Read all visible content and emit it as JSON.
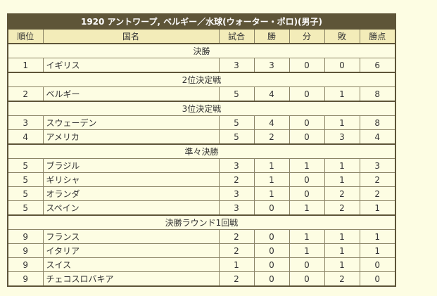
{
  "title": "1920 アントワープ, ベルギー／水球(ウォーター・ポロ)(男子)",
  "headers": [
    "順位",
    "国名",
    "試合",
    "勝",
    "分",
    "敗",
    "勝点"
  ],
  "sections": [
    {
      "name": "決勝",
      "rows": [
        {
          "rank": "1",
          "country": "イギリス",
          "played": "3",
          "won": "3",
          "drawn": "0",
          "lost": "0",
          "points": "6"
        }
      ]
    },
    {
      "name": "2位決定戦",
      "rows": [
        {
          "rank": "2",
          "country": "ベルギー",
          "played": "5",
          "won": "4",
          "drawn": "0",
          "lost": "1",
          "points": "8"
        }
      ]
    },
    {
      "name": "3位決定戦",
      "rows": [
        {
          "rank": "3",
          "country": "スウェーデン",
          "played": "5",
          "won": "4",
          "drawn": "0",
          "lost": "1",
          "points": "8"
        },
        {
          "rank": "4",
          "country": "アメリカ",
          "played": "5",
          "won": "2",
          "drawn": "0",
          "lost": "3",
          "points": "4"
        }
      ]
    },
    {
      "name": "準々決勝",
      "rows": [
        {
          "rank": "5",
          "country": "ブラジル",
          "played": "3",
          "won": "1",
          "drawn": "1",
          "lost": "1",
          "points": "3"
        },
        {
          "rank": "5",
          "country": "ギリシャ",
          "played": "2",
          "won": "1",
          "drawn": "0",
          "lost": "1",
          "points": "2"
        },
        {
          "rank": "5",
          "country": "オランダ",
          "played": "3",
          "won": "1",
          "drawn": "0",
          "lost": "2",
          "points": "2"
        },
        {
          "rank": "5",
          "country": "スペイン",
          "played": "3",
          "won": "0",
          "drawn": "1",
          "lost": "2",
          "points": "1"
        }
      ]
    },
    {
      "name": "決勝ラウンド1回戦",
      "rows": [
        {
          "rank": "9",
          "country": "フランス",
          "played": "2",
          "won": "0",
          "drawn": "1",
          "lost": "1",
          "points": "1"
        },
        {
          "rank": "9",
          "country": "イタリア",
          "played": "2",
          "won": "0",
          "drawn": "1",
          "lost": "1",
          "points": "1"
        },
        {
          "rank": "9",
          "country": "スイス",
          "played": "1",
          "won": "0",
          "drawn": "0",
          "lost": "1",
          "points": "0"
        },
        {
          "rank": "9",
          "country": "チェコスロバキア",
          "played": "2",
          "won": "0",
          "drawn": "0",
          "lost": "2",
          "points": "0"
        }
      ]
    }
  ]
}
